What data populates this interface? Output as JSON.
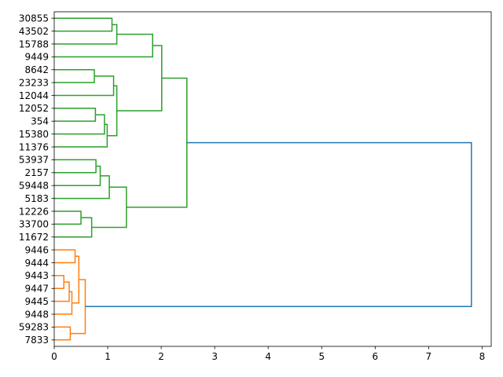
{
  "chart_data": {
    "type": "dendrogram",
    "orientation": "right",
    "title": "",
    "xlabel": "",
    "ylabel": "",
    "xlim": [
      0,
      8.17
    ],
    "x_ticks": [
      0,
      1,
      2,
      3,
      4,
      5,
      6,
      7,
      8
    ],
    "leaves": [
      "30855",
      "43502",
      "15788",
      "9449",
      "8642",
      "23233",
      "12044",
      "12052",
      "354",
      "15380",
      "11376",
      "53937",
      "2157",
      "59448",
      "5183",
      "12226",
      "33700",
      "11672",
      "9446",
      "9444",
      "9443",
      "9447",
      "9445",
      "9448",
      "59283",
      "7833"
    ],
    "colors": {
      "upper_cluster": "#2ca02c",
      "lower_cluster": "#ff7f0e",
      "link_above_threshold": "#1f77b4"
    },
    "merges": [
      {
        "a": "L0",
        "b": "L1",
        "height": 1.08,
        "color": "upper_cluster"
      },
      {
        "a": "M0",
        "b": "L2",
        "height": 1.17,
        "color": "upper_cluster"
      },
      {
        "a": "M1",
        "b": "L3",
        "height": 1.84,
        "color": "upper_cluster"
      },
      {
        "a": "L4",
        "b": "L5",
        "height": 0.75,
        "color": "upper_cluster"
      },
      {
        "a": "M3",
        "b": "L6",
        "height": 1.11,
        "color": "upper_cluster"
      },
      {
        "a": "L7",
        "b": "L8",
        "height": 0.77,
        "color": "upper_cluster"
      },
      {
        "a": "M5",
        "b": "L9",
        "height": 0.94,
        "color": "upper_cluster"
      },
      {
        "a": "M6",
        "b": "L10",
        "height": 0.99,
        "color": "upper_cluster"
      },
      {
        "a": "M4",
        "b": "M7",
        "height": 1.17,
        "color": "upper_cluster"
      },
      {
        "a": "M2",
        "b": "M8",
        "height": 2.01,
        "color": "upper_cluster"
      },
      {
        "a": "L11",
        "b": "L12",
        "height": 0.78,
        "color": "upper_cluster"
      },
      {
        "a": "M10",
        "b": "L13",
        "height": 0.86,
        "color": "upper_cluster"
      },
      {
        "a": "M11",
        "b": "L14",
        "height": 1.03,
        "color": "upper_cluster"
      },
      {
        "a": "L15",
        "b": "L16",
        "height": 0.5,
        "color": "upper_cluster"
      },
      {
        "a": "M13",
        "b": "L17",
        "height": 0.7,
        "color": "upper_cluster"
      },
      {
        "a": "M12",
        "b": "M14",
        "height": 1.35,
        "color": "upper_cluster"
      },
      {
        "a": "M9",
        "b": "M15",
        "height": 2.48,
        "color": "upper_cluster"
      },
      {
        "a": "L18",
        "b": "L19",
        "height": 0.39,
        "color": "lower_cluster"
      },
      {
        "a": "L20",
        "b": "L21",
        "height": 0.18,
        "color": "lower_cluster"
      },
      {
        "a": "M18",
        "b": "L22",
        "height": 0.28,
        "color": "lower_cluster"
      },
      {
        "a": "M19",
        "b": "L23",
        "height": 0.33,
        "color": "lower_cluster"
      },
      {
        "a": "M17",
        "b": "M20",
        "height": 0.46,
        "color": "lower_cluster"
      },
      {
        "a": "L24",
        "b": "L25",
        "height": 0.3,
        "color": "lower_cluster"
      },
      {
        "a": "M21",
        "b": "M22",
        "height": 0.58,
        "color": "lower_cluster"
      },
      {
        "a": "M16",
        "b": "M23",
        "height": 7.8,
        "color": "link_above_threshold"
      }
    ]
  }
}
